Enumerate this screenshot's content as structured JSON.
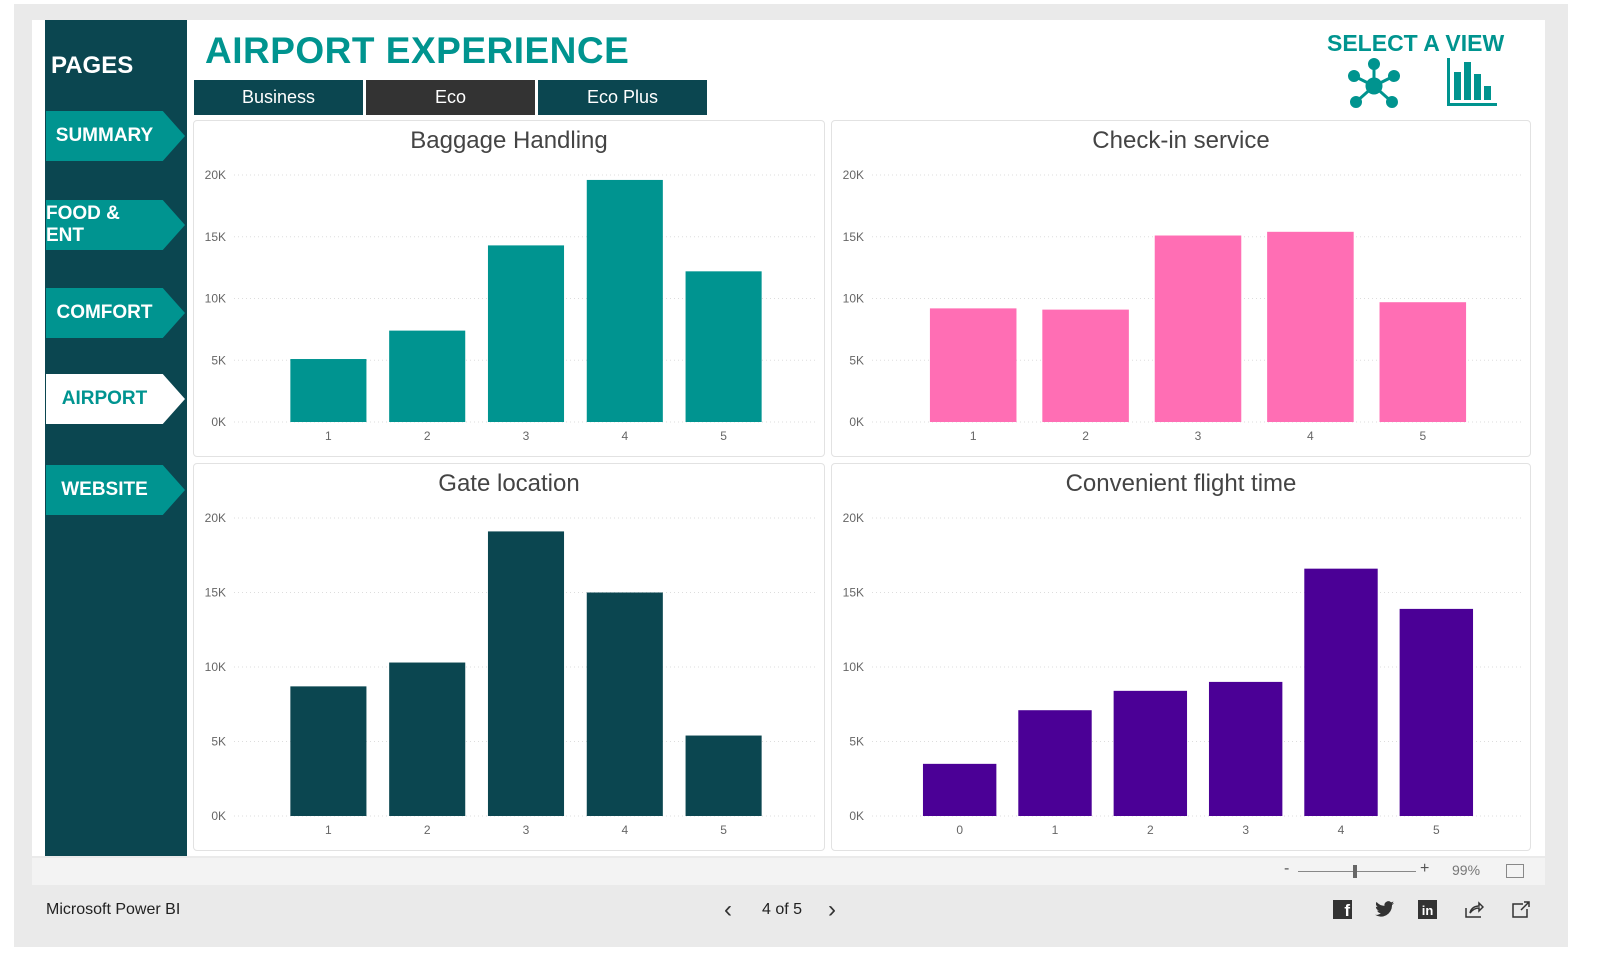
{
  "sidebar": {
    "title": "PAGES",
    "items": [
      {
        "label": "SUMMARY",
        "active": false
      },
      {
        "label": "FOOD & ENT",
        "active": false
      },
      {
        "label": "COMFORT",
        "active": false
      },
      {
        "label": "AIRPORT",
        "active": true
      },
      {
        "label": "WEBSITE",
        "active": false
      }
    ]
  },
  "header": {
    "title": "AIRPORT EXPERIENCE",
    "tabs": [
      {
        "label": "Business"
      },
      {
        "label": "Eco"
      },
      {
        "label": "Eco Plus"
      }
    ],
    "select_view": "SELECT A VIEW",
    "view_icons": [
      "network-icon",
      "bar-chart-icon"
    ]
  },
  "colors": {
    "accent": "#00948f",
    "sidebar": "#0b4650"
  },
  "chart_data": [
    {
      "type": "bar",
      "title": "Baggage Handling",
      "categories": [
        "1",
        "2",
        "3",
        "4",
        "5"
      ],
      "values": [
        5100,
        7400,
        14300,
        19600,
        12200
      ],
      "yticks": [
        "0K",
        "5K",
        "10K",
        "15K",
        "20K"
      ],
      "ylim": [
        0,
        20000
      ],
      "grid": true,
      "color": "#009490"
    },
    {
      "type": "bar",
      "title": "Check-in service",
      "categories": [
        "1",
        "2",
        "3",
        "4",
        "5"
      ],
      "values": [
        9200,
        9100,
        15100,
        15400,
        9700
      ],
      "yticks": [
        "0K",
        "5K",
        "10K",
        "15K",
        "20K"
      ],
      "ylim": [
        0,
        20000
      ],
      "grid": true,
      "color": "#ff6eb4"
    },
    {
      "type": "bar",
      "title": "Gate location",
      "categories": [
        "1",
        "2",
        "3",
        "4",
        "5"
      ],
      "values": [
        8700,
        10300,
        19100,
        15000,
        5400
      ],
      "yticks": [
        "0K",
        "5K",
        "10K",
        "15K",
        "20K"
      ],
      "ylim": [
        0,
        20000
      ],
      "grid": true,
      "color": "#0b4650"
    },
    {
      "type": "bar",
      "title": "Convenient flight time",
      "categories": [
        "0",
        "1",
        "2",
        "3",
        "4",
        "5"
      ],
      "values": [
        3500,
        7100,
        8400,
        9000,
        16600,
        13900
      ],
      "yticks": [
        "0K",
        "5K",
        "10K",
        "15K",
        "20K"
      ],
      "ylim": [
        0,
        20000
      ],
      "grid": true,
      "color": "#4b0096"
    }
  ],
  "zoom": {
    "minus": "-",
    "plus": "+",
    "level": "99%"
  },
  "footer": {
    "brand": "Microsoft Power BI",
    "page": "4 of 5"
  }
}
